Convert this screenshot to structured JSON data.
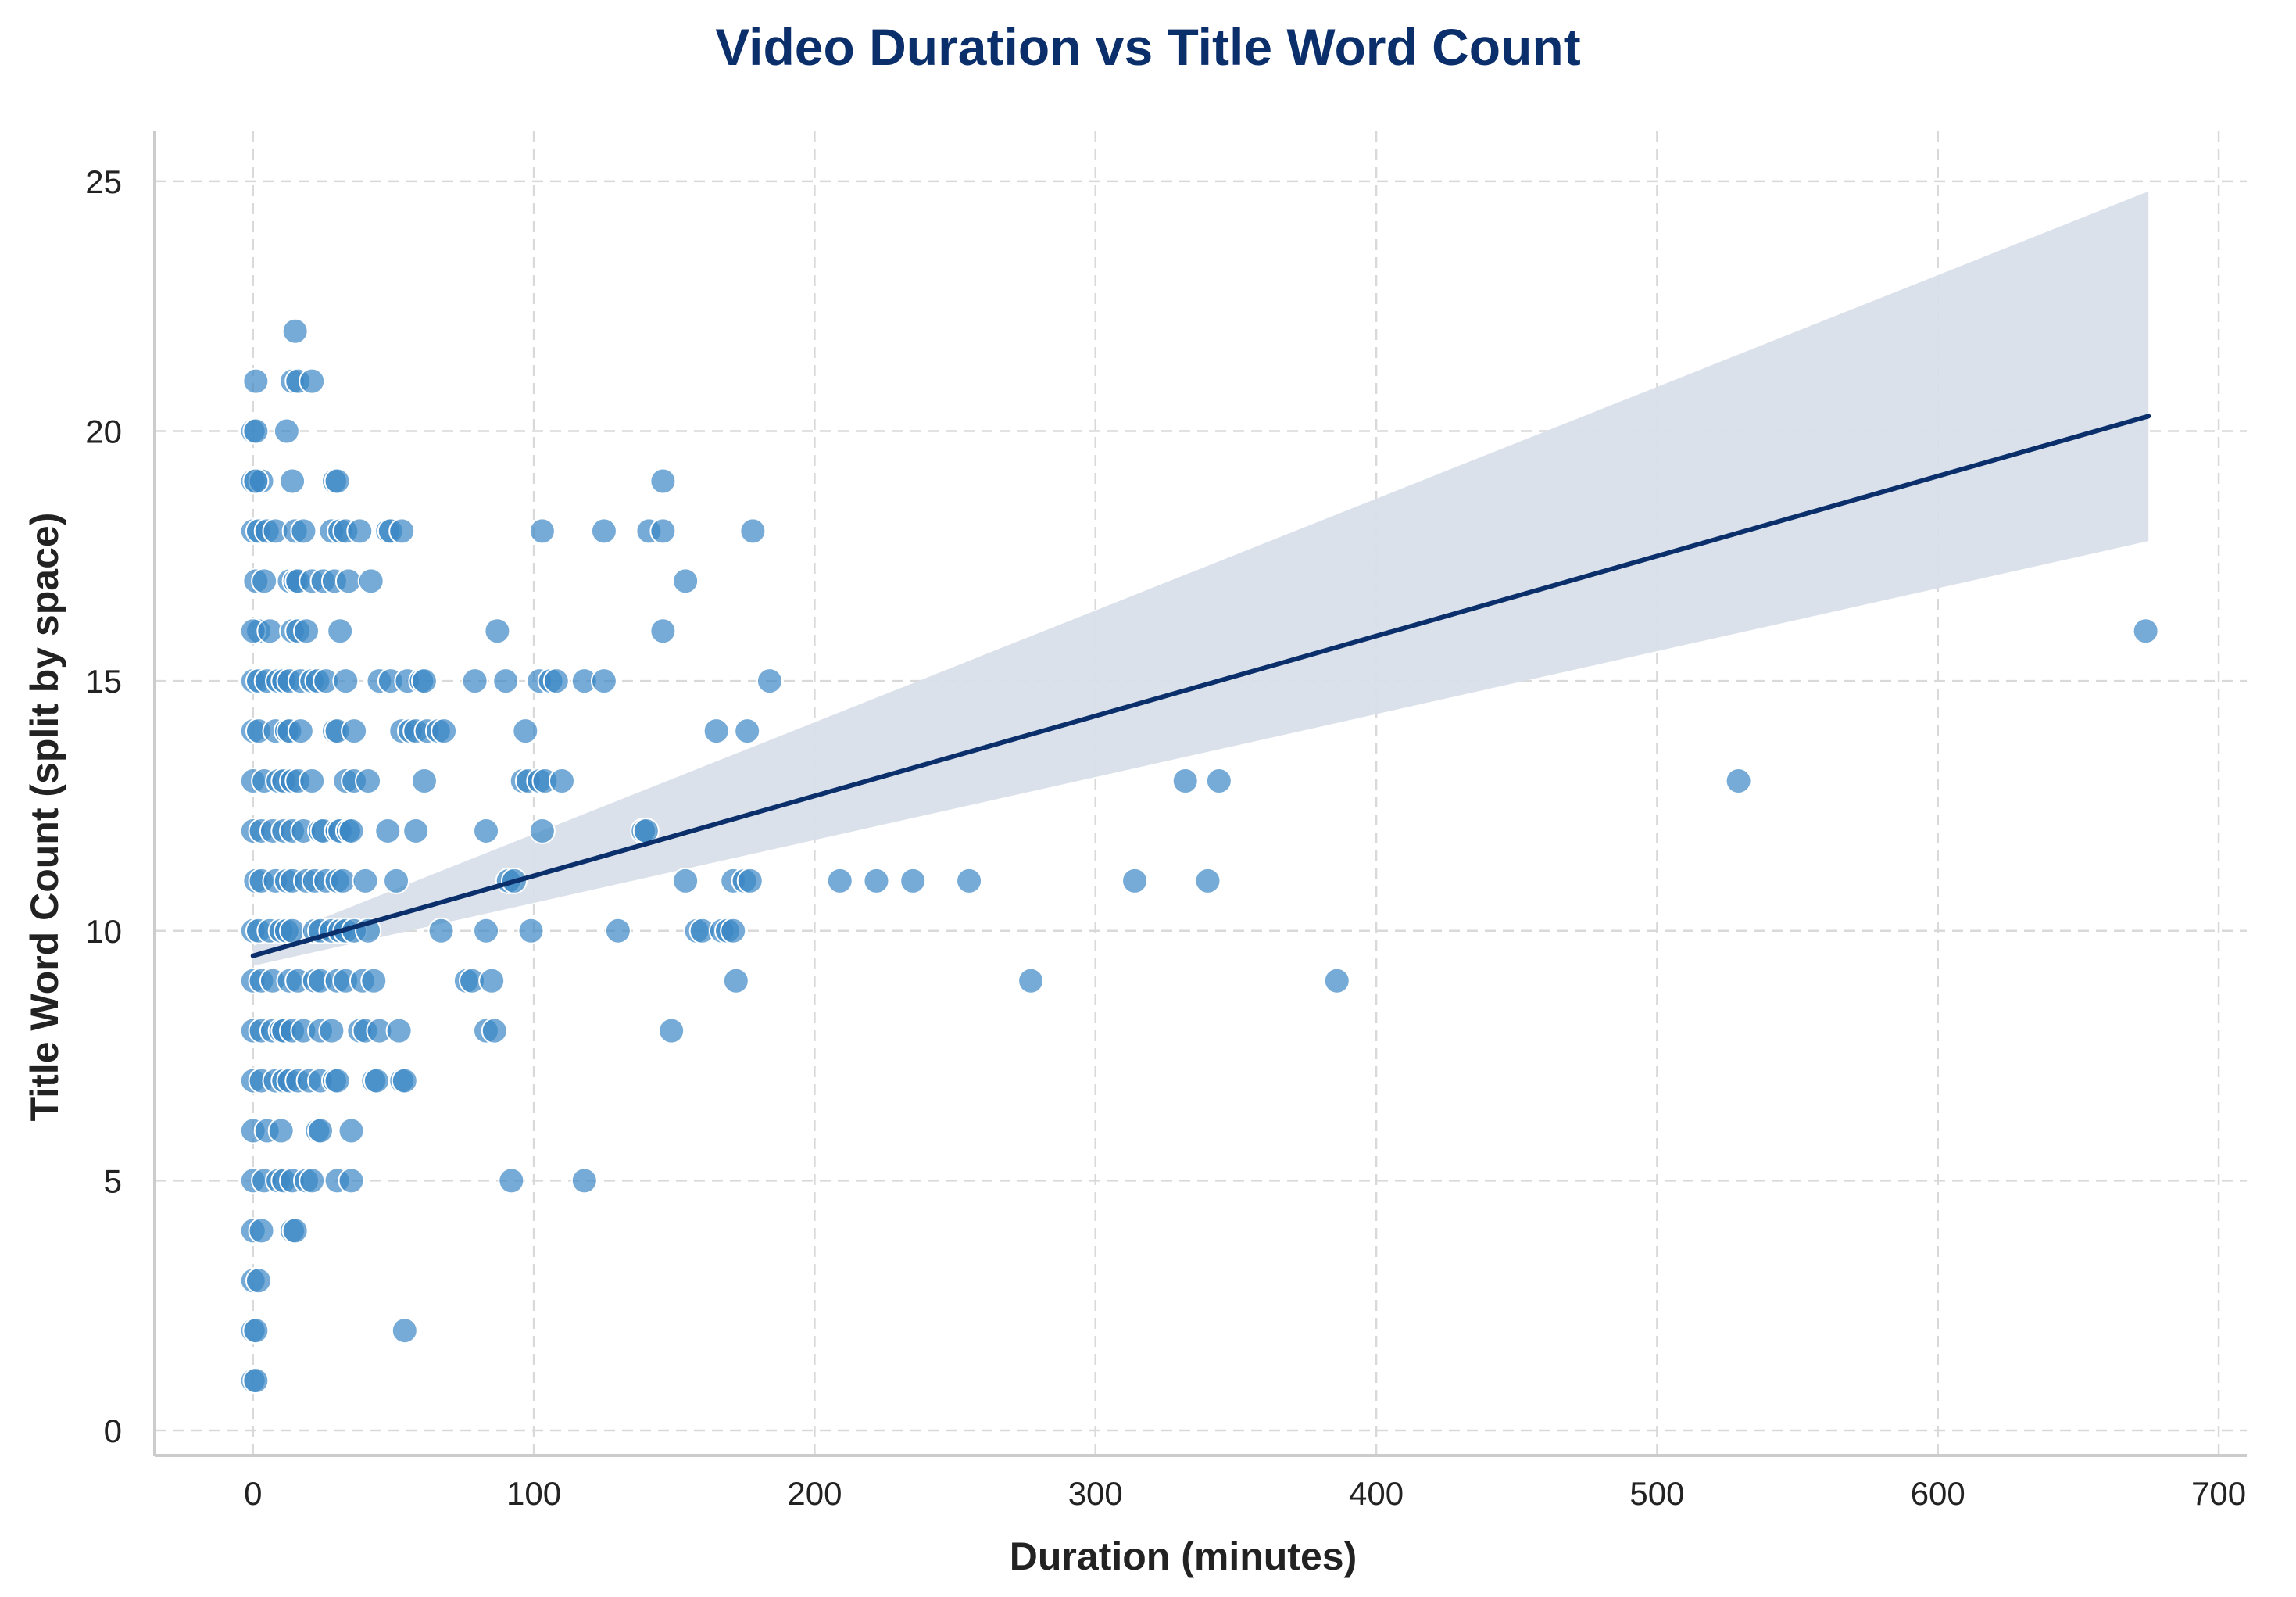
{
  "chart_data": {
    "type": "scatter",
    "title": "Video Duration vs Title Word Count",
    "xlabel": "Duration (minutes)",
    "ylabel": "Title Word Count (split by space)",
    "xlim": [
      -35,
      710
    ],
    "ylim": [
      -0.5,
      26
    ],
    "xticks": [
      0,
      100,
      200,
      300,
      400,
      500,
      600,
      700
    ],
    "yticks": [
      0,
      5,
      10,
      15,
      20,
      25
    ],
    "grid": true,
    "colors": {
      "points": "#3b88c4",
      "point_edge": "#ffffff",
      "trend": "#0b2f6b",
      "band": "#d9dfea",
      "grid": "#d9d9d9",
      "axis": "#cccccc"
    },
    "trendline": {
      "x": [
        0,
        675
      ],
      "y": [
        9.5,
        20.3
      ]
    },
    "confidence_band": {
      "x": [
        0,
        675
      ],
      "upper": [
        9.7,
        24.8
      ],
      "lower": [
        9.3,
        17.8
      ]
    },
    "points": [
      [
        1,
        21
      ],
      [
        0,
        20
      ],
      [
        1,
        20
      ],
      [
        0,
        19
      ],
      [
        3,
        19
      ],
      [
        1,
        19
      ],
      [
        0,
        18
      ],
      [
        2,
        18
      ],
      [
        5,
        18
      ],
      [
        8,
        18
      ],
      [
        1,
        17
      ],
      [
        4,
        17
      ],
      [
        2,
        16
      ],
      [
        0,
        16
      ],
      [
        6,
        16
      ],
      [
        0,
        15
      ],
      [
        2,
        15
      ],
      [
        5,
        15
      ],
      [
        9,
        15
      ],
      [
        0,
        14
      ],
      [
        2,
        14
      ],
      [
        8,
        14
      ],
      [
        12,
        14
      ],
      [
        0,
        13
      ],
      [
        4,
        13
      ],
      [
        9,
        13
      ],
      [
        0,
        12
      ],
      [
        3,
        12
      ],
      [
        7,
        12
      ],
      [
        1,
        11
      ],
      [
        3,
        11
      ],
      [
        8,
        11
      ],
      [
        0,
        10
      ],
      [
        2,
        10
      ],
      [
        6,
        10
      ],
      [
        10,
        10
      ],
      [
        0,
        9
      ],
      [
        3,
        9
      ],
      [
        7,
        9
      ],
      [
        0,
        8
      ],
      [
        3,
        8
      ],
      [
        7,
        8
      ],
      [
        10,
        8
      ],
      [
        0,
        7
      ],
      [
        3,
        7
      ],
      [
        8,
        7
      ],
      [
        11,
        7
      ],
      [
        0,
        6
      ],
      [
        5,
        6
      ],
      [
        10,
        6
      ],
      [
        0,
        5
      ],
      [
        4,
        5
      ],
      [
        9,
        5
      ],
      [
        0,
        4
      ],
      [
        3,
        4
      ],
      [
        0,
        3
      ],
      [
        2,
        3
      ],
      [
        0,
        2
      ],
      [
        1,
        2
      ],
      [
        0,
        1
      ],
      [
        1,
        1
      ],
      [
        15,
        22
      ],
      [
        14,
        21
      ],
      [
        16,
        21
      ],
      [
        21,
        21
      ],
      [
        12,
        20
      ],
      [
        14,
        19
      ],
      [
        29,
        19
      ],
      [
        30,
        19
      ],
      [
        15,
        18
      ],
      [
        18,
        18
      ],
      [
        28,
        18
      ],
      [
        31,
        18
      ],
      [
        33,
        18
      ],
      [
        38,
        18
      ],
      [
        48,
        18
      ],
      [
        49,
        18
      ],
      [
        53,
        18
      ],
      [
        13,
        17
      ],
      [
        15,
        17
      ],
      [
        16,
        17
      ],
      [
        21,
        17
      ],
      [
        25,
        17
      ],
      [
        29,
        17
      ],
      [
        34,
        17
      ],
      [
        42,
        17
      ],
      [
        14,
        16
      ],
      [
        16,
        16
      ],
      [
        19,
        16
      ],
      [
        31,
        16
      ],
      [
        11,
        15
      ],
      [
        13,
        15
      ],
      [
        17,
        15
      ],
      [
        21,
        15
      ],
      [
        23,
        15
      ],
      [
        26,
        15
      ],
      [
        33,
        15
      ],
      [
        45,
        15
      ],
      [
        49,
        15
      ],
      [
        55,
        15
      ],
      [
        60,
        15
      ],
      [
        61,
        15
      ],
      [
        13,
        14
      ],
      [
        17,
        14
      ],
      [
        29,
        14
      ],
      [
        30,
        14
      ],
      [
        36,
        14
      ],
      [
        53,
        14
      ],
      [
        56,
        14
      ],
      [
        58,
        14
      ],
      [
        62,
        14
      ],
      [
        66,
        14
      ],
      [
        68,
        14
      ],
      [
        11,
        13
      ],
      [
        14,
        13
      ],
      [
        16,
        13
      ],
      [
        21,
        13
      ],
      [
        33,
        13
      ],
      [
        36,
        13
      ],
      [
        41,
        13
      ],
      [
        61,
        13
      ],
      [
        11,
        12
      ],
      [
        14,
        12
      ],
      [
        18,
        12
      ],
      [
        24,
        12
      ],
      [
        25,
        12
      ],
      [
        30,
        12
      ],
      [
        31,
        12
      ],
      [
        34,
        12
      ],
      [
        35,
        12
      ],
      [
        48,
        12
      ],
      [
        58,
        12
      ],
      [
        12,
        11
      ],
      [
        14,
        11
      ],
      [
        19,
        11
      ],
      [
        22,
        11
      ],
      [
        26,
        11
      ],
      [
        30,
        11
      ],
      [
        32,
        11
      ],
      [
        40,
        11
      ],
      [
        51,
        11
      ],
      [
        12,
        10
      ],
      [
        14,
        10
      ],
      [
        22,
        10
      ],
      [
        24,
        10
      ],
      [
        28,
        10
      ],
      [
        31,
        10
      ],
      [
        33,
        10
      ],
      [
        36,
        10
      ],
      [
        41,
        10
      ],
      [
        67,
        10
      ],
      [
        13,
        9
      ],
      [
        16,
        9
      ],
      [
        22,
        9
      ],
      [
        24,
        9
      ],
      [
        30,
        9
      ],
      [
        33,
        9
      ],
      [
        39,
        9
      ],
      [
        43,
        9
      ],
      [
        11,
        8
      ],
      [
        14,
        8
      ],
      [
        18,
        8
      ],
      [
        24,
        8
      ],
      [
        28,
        8
      ],
      [
        38,
        8
      ],
      [
        40,
        8
      ],
      [
        45,
        8
      ],
      [
        52,
        8
      ],
      [
        13,
        7
      ],
      [
        16,
        7
      ],
      [
        20,
        7
      ],
      [
        24,
        7
      ],
      [
        29,
        7
      ],
      [
        30,
        7
      ],
      [
        43,
        7
      ],
      [
        44,
        7
      ],
      [
        53,
        7
      ],
      [
        54,
        7
      ],
      [
        23,
        6
      ],
      [
        24,
        6
      ],
      [
        35,
        6
      ],
      [
        11,
        5
      ],
      [
        14,
        5
      ],
      [
        19,
        5
      ],
      [
        21,
        5
      ],
      [
        30,
        5
      ],
      [
        35,
        5
      ],
      [
        14,
        4
      ],
      [
        15,
        4
      ],
      [
        54,
        2
      ],
      [
        146,
        19
      ],
      [
        103,
        18
      ],
      [
        125,
        18
      ],
      [
        141,
        18
      ],
      [
        146,
        18
      ],
      [
        178,
        18
      ],
      [
        154,
        17
      ],
      [
        87,
        16
      ],
      [
        146,
        16
      ],
      [
        79,
        15
      ],
      [
        90,
        15
      ],
      [
        102,
        15
      ],
      [
        106,
        15
      ],
      [
        108,
        15
      ],
      [
        118,
        15
      ],
      [
        125,
        15
      ],
      [
        184,
        15
      ],
      [
        97,
        14
      ],
      [
        165,
        14
      ],
      [
        176,
        14
      ],
      [
        96,
        13
      ],
      [
        98,
        13
      ],
      [
        102,
        13
      ],
      [
        104,
        13
      ],
      [
        110,
        13
      ],
      [
        83,
        12
      ],
      [
        103,
        12
      ],
      [
        139,
        12
      ],
      [
        140,
        12
      ],
      [
        91,
        11
      ],
      [
        93,
        11
      ],
      [
        154,
        11
      ],
      [
        171,
        11
      ],
      [
        175,
        11
      ],
      [
        177,
        11
      ],
      [
        83,
        10
      ],
      [
        99,
        10
      ],
      [
        130,
        10
      ],
      [
        158,
        10
      ],
      [
        160,
        10
      ],
      [
        167,
        10
      ],
      [
        169,
        10
      ],
      [
        171,
        10
      ],
      [
        76,
        9
      ],
      [
        78,
        9
      ],
      [
        85,
        9
      ],
      [
        172,
        9
      ],
      [
        83,
        8
      ],
      [
        86,
        8
      ],
      [
        149,
        8
      ],
      [
        92,
        5
      ],
      [
        118,
        5
      ],
      [
        209,
        11
      ],
      [
        222,
        11
      ],
      [
        235,
        11
      ],
      [
        255,
        11
      ],
      [
        277,
        9
      ],
      [
        314,
        11
      ],
      [
        332,
        13
      ],
      [
        340,
        11
      ],
      [
        344,
        13
      ],
      [
        386,
        9
      ],
      [
        529,
        13
      ],
      [
        674,
        16
      ]
    ]
  }
}
